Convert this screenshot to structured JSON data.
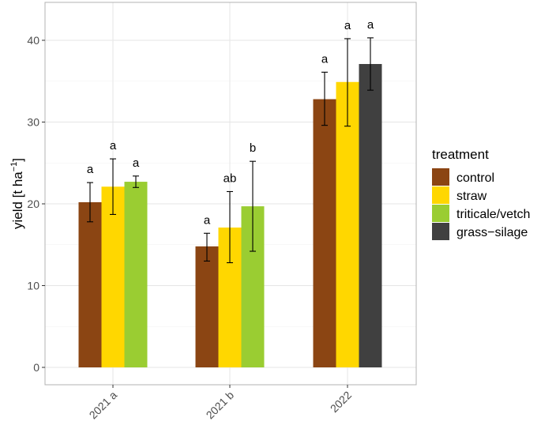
{
  "chart_data": {
    "type": "bar",
    "title": "",
    "xlabel": "",
    "ylabel": "yield [t ha",
    "ylabel_superscript": "−1",
    "ylabel_suffix": "]",
    "ylim": [
      0,
      42
    ],
    "yticks": [
      0,
      10,
      20,
      30,
      40
    ],
    "categories": [
      "2021 a",
      "2021 b",
      "2022"
    ],
    "legend": {
      "title": "treatment",
      "position": "right"
    },
    "series": [
      {
        "name": "control",
        "color": "#8B4513",
        "values": [
          20.2,
          14.8,
          32.8
        ],
        "err_low": [
          17.8,
          13.0,
          29.6
        ],
        "err_high": [
          22.6,
          16.4,
          36.1
        ],
        "letters": [
          "a",
          "a",
          "a"
        ]
      },
      {
        "name": "straw",
        "color": "#FFD700",
        "values": [
          22.1,
          17.1,
          34.9
        ],
        "err_low": [
          18.7,
          12.8,
          29.5
        ],
        "err_high": [
          25.5,
          21.5,
          40.2
        ],
        "letters": [
          "a",
          "ab",
          "a"
        ]
      },
      {
        "name": "triticale/vetch",
        "color": "#9ACD32",
        "values": [
          22.7,
          19.7,
          null
        ],
        "err_low": [
          22.0,
          14.2,
          null
        ],
        "err_high": [
          23.4,
          25.2,
          null
        ],
        "letters": [
          "a",
          "b",
          ""
        ]
      },
      {
        "name": "grass−silage",
        "color": "#404040",
        "values": [
          null,
          null,
          37.1
        ],
        "err_low": [
          null,
          null,
          33.9
        ],
        "err_high": [
          null,
          null,
          40.3
        ],
        "letters": [
          "",
          "",
          "a"
        ]
      }
    ]
  }
}
